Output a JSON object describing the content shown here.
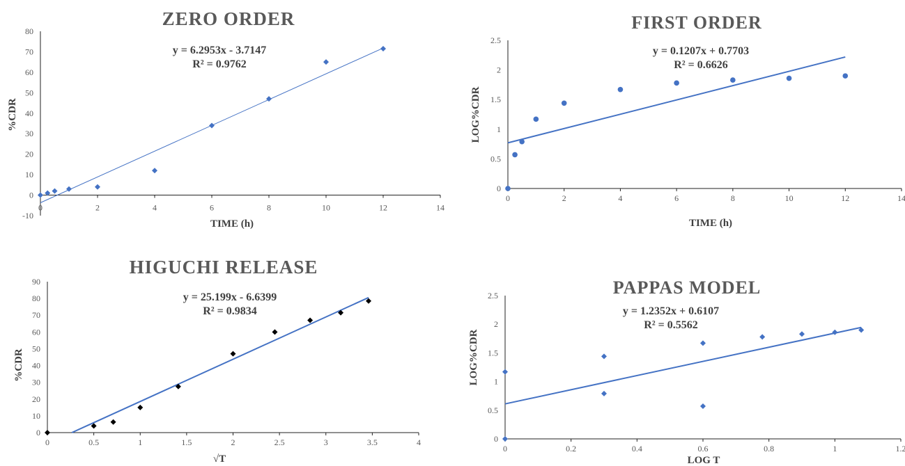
{
  "chart_data": [
    {
      "type": "scatter",
      "title": "ZERO ORDER",
      "xlabel": "TIME (h)",
      "ylabel": "%CDR",
      "xlim": [
        0,
        14
      ],
      "ylim": [
        -10,
        80
      ],
      "xticks": [
        0,
        2,
        4,
        6,
        8,
        10,
        12,
        14
      ],
      "yticks": [
        -10,
        0,
        10,
        20,
        30,
        40,
        50,
        60,
        70,
        80
      ],
      "marker": "diamond",
      "color": "#4472C4",
      "x": [
        0,
        0.25,
        0.5,
        1,
        2,
        4,
        6,
        8,
        10,
        12
      ],
      "y": [
        0,
        1,
        2,
        3,
        4,
        12,
        34,
        47,
        65,
        71.5
      ],
      "trendline": {
        "slope": 6.2953,
        "intercept": -3.7147,
        "x_range": [
          0,
          12
        ]
      },
      "equation": "y = 6.2953x - 3.7147",
      "r2": "R² = 0.9762"
    },
    {
      "type": "scatter",
      "title": "FIRST ORDER",
      "xlabel": "TIME (h)",
      "ylabel": "LOG%CDR",
      "xlim": [
        0,
        14
      ],
      "ylim": [
        0,
        2.5
      ],
      "xticks": [
        0,
        2,
        4,
        6,
        8,
        10,
        12,
        14
      ],
      "yticks": [
        0,
        0.5,
        1,
        1.5,
        2,
        2.5
      ],
      "marker": "circle",
      "color": "#4472C4",
      "x": [
        0,
        0.25,
        0.5,
        1,
        2,
        4,
        6,
        8,
        10,
        12
      ],
      "y": [
        0,
        0.57,
        0.79,
        1.17,
        1.44,
        1.67,
        1.78,
        1.83,
        1.86,
        1.9
      ],
      "trendline": {
        "slope": 0.1207,
        "intercept": 0.7703,
        "x_range": [
          0,
          12
        ]
      },
      "equation": "y = 0.1207x + 0.7703",
      "r2": "R² = 0.6626"
    },
    {
      "type": "scatter",
      "title": "HIGUCHI RELEASE",
      "xlabel": "√T",
      "ylabel": "%CDR",
      "xlim": [
        0,
        4
      ],
      "ylim": [
        0,
        90
      ],
      "xticks": [
        0,
        0.5,
        1,
        1.5,
        2,
        2.5,
        3,
        3.5,
        4
      ],
      "yticks": [
        0,
        10,
        20,
        30,
        40,
        50,
        60,
        70,
        80,
        90
      ],
      "marker": "diamond",
      "color": "#000000",
      "x": [
        0,
        0.5,
        0.71,
        1,
        1.41,
        2,
        2.45,
        2.83,
        3.16,
        3.46
      ],
      "y": [
        0,
        4,
        6.3,
        15,
        27.5,
        47,
        60,
        67,
        71.5,
        78.5
      ],
      "trendline": {
        "slope": 25.199,
        "intercept": -6.6399,
        "x_range": [
          0,
          3.46
        ]
      },
      "equation": "y = 25.199x - 6.6399",
      "r2": "R² = 0.9834"
    },
    {
      "type": "scatter",
      "title": "PAPPAS MODEL",
      "xlabel": "LOG T",
      "ylabel": "LOG%CDR",
      "xlim": [
        0,
        1.2
      ],
      "ylim": [
        0,
        2.5
      ],
      "xticks": [
        0,
        0.2,
        0.4,
        0.6,
        0.8,
        1,
        1.2
      ],
      "yticks": [
        0,
        0.5,
        1,
        1.5,
        2,
        2.5
      ],
      "marker": "diamond",
      "color": "#4472C4",
      "x": [
        0,
        0,
        0.3,
        0.3,
        0.6,
        0.6,
        0.78,
        0.9,
        1,
        1.08
      ],
      "y": [
        0,
        1.17,
        0.79,
        1.44,
        0.57,
        1.67,
        1.78,
        1.83,
        1.86,
        1.9
      ],
      "trendline": {
        "slope": 1.2352,
        "intercept": 0.6107,
        "x_range": [
          0,
          1.08
        ]
      },
      "equation": "y = 1.2352x + 0.6107",
      "r2": "R² = 0.5562"
    }
  ]
}
